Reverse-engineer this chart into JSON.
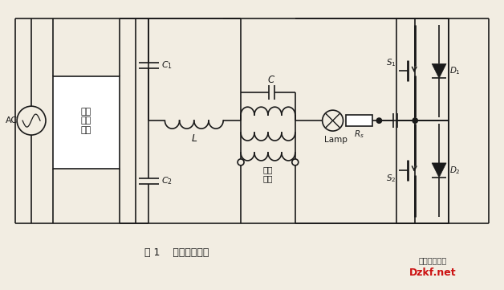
{
  "bg_color": "#f2ede2",
  "line_color": "#1a1a1a",
  "text_color": "#1a1a1a",
  "title": "图 1    电路结构框图",
  "wm1": "电子开发社区",
  "wm2": "Dzkf.net",
  "AC": "AC",
  "pfc": "功率\n因数\n校正",
  "C1": "$C_1$",
  "C2": "$C_2$",
  "L": "$L$",
  "C": "$C$",
  "Lamp": "Lamp",
  "Rs": "$R_s$",
  "ignition": "点火\n电感",
  "S1": "$S_1$",
  "S2": "$S_2$",
  "D1": "$D_1$",
  "D2": "$D_2$"
}
